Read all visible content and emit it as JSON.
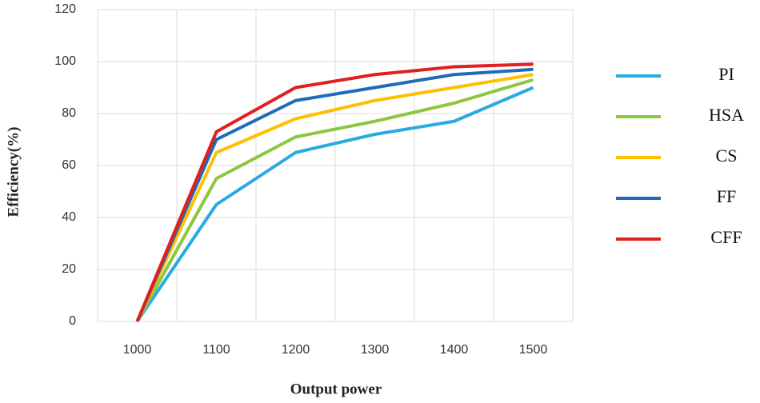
{
  "chart_data": {
    "type": "line",
    "x_label": "Output power",
    "y_label": "Efficiency(%)",
    "categories": [
      "1000",
      "1100",
      "1200",
      "1300",
      "1400",
      "1500"
    ],
    "ylim": [
      0,
      120
    ],
    "yticks": [
      0,
      20,
      40,
      60,
      80,
      100,
      120
    ],
    "grid": true,
    "legend": "right",
    "series": [
      {
        "name": "PI",
        "color": "#29abe2",
        "values": [
          0,
          45,
          65,
          72,
          77,
          90
        ]
      },
      {
        "name": "HSA",
        "color": "#8dc63f",
        "values": [
          0,
          55,
          71,
          77,
          84,
          93
        ]
      },
      {
        "name": "CS",
        "color": "#ffc000",
        "values": [
          0,
          65,
          78,
          85,
          90,
          95
        ]
      },
      {
        "name": "FF",
        "color": "#1f6bb5",
        "values": [
          0,
          70,
          85,
          90,
          95,
          97
        ]
      },
      {
        "name": "CFF",
        "color": "#e02020",
        "values": [
          0,
          73,
          90,
          95,
          98,
          99
        ]
      }
    ]
  }
}
